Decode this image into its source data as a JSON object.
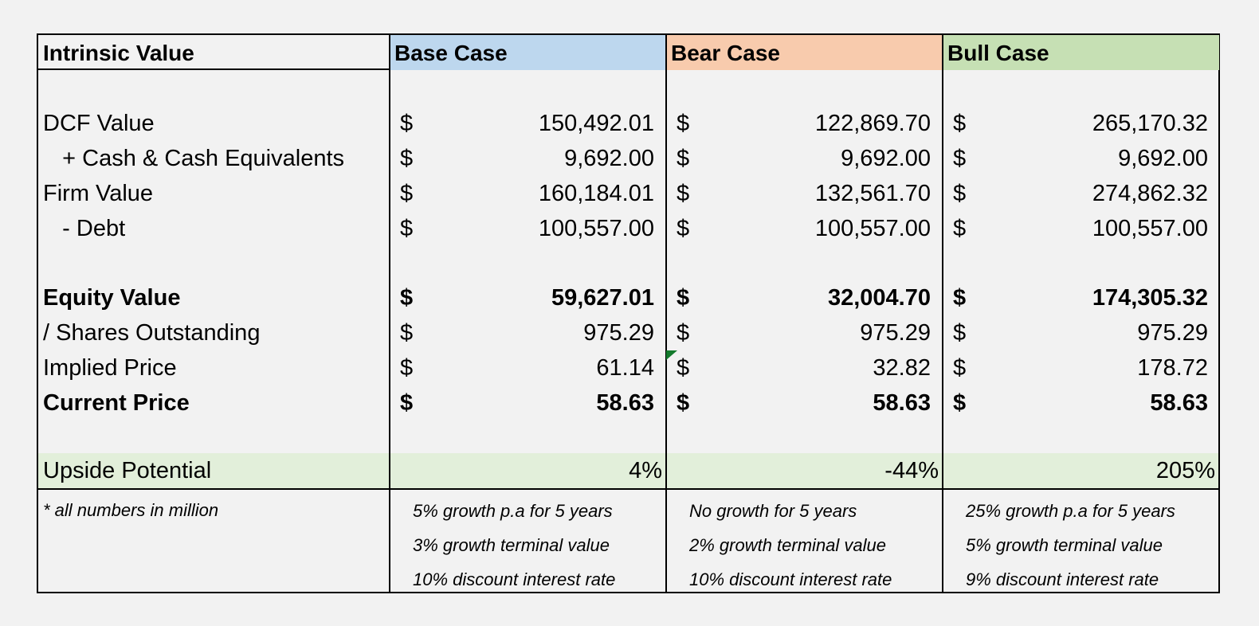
{
  "header": {
    "label": "Intrinsic Value",
    "cases": [
      "Base Case",
      "Bear Case",
      "Bull Case"
    ],
    "case_colors": [
      "#bdd7ee",
      "#f8cbad",
      "#c6e0b4"
    ]
  },
  "rows": [
    {
      "label": "DCF Value",
      "values": [
        "150,492.01",
        "122,869.70",
        "265,170.32"
      ]
    },
    {
      "label": "   + Cash & Cash Equivalents",
      "values": [
        "9,692.00",
        "9,692.00",
        "9,692.00"
      ]
    },
    {
      "label": "Firm Value",
      "values": [
        "160,184.01",
        "132,561.70",
        "274,862.32"
      ]
    },
    {
      "label": "   - Debt",
      "values": [
        "100,557.00",
        "100,557.00",
        "100,557.00"
      ]
    },
    {
      "label": "Equity Value",
      "values": [
        "59,627.01",
        "32,004.70",
        "174,305.32"
      ]
    },
    {
      "label": "/ Shares Outstanding",
      "values": [
        "975.29",
        "975.29",
        "975.29"
      ]
    },
    {
      "label": "Implied Price",
      "values": [
        "61.14",
        "32.82",
        "178.72"
      ]
    },
    {
      "label": "Current Price",
      "values": [
        "58.63",
        "58.63",
        "58.63"
      ]
    }
  ],
  "currency_symbol": "$",
  "upside": {
    "label": "Upside Potential",
    "values": [
      "4%",
      "-44%",
      "205%"
    ],
    "band_color": "#e2efda"
  },
  "notes": {
    "footnote": "* all numbers in million",
    "base": [
      "5% growth p.a for 5 years",
      "3% growth terminal value",
      "10% discount interest rate"
    ],
    "bear": [
      "No growth for 5 years",
      "2% growth terminal value",
      "10% discount interest rate"
    ],
    "bull": [
      "25% growth p.a for 5 years",
      "5% growth terminal value",
      "9% discount interest rate"
    ]
  }
}
